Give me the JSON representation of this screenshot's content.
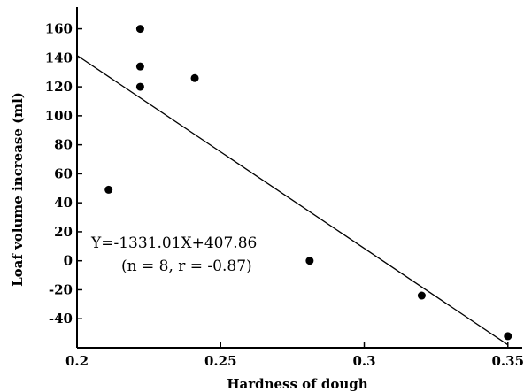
{
  "chart_data": {
    "type": "scatter",
    "title": "",
    "xlabel": "Hardness of dough",
    "ylabel": "Loaf volume increase (ml)",
    "xlim": [
      0.2,
      0.355
    ],
    "ylim": [
      -60,
      175
    ],
    "x_ticks": [
      0.2,
      0.25,
      0.3,
      0.35
    ],
    "x_tick_labels": [
      "0.2",
      "0.25",
      "0.3",
      "0.35"
    ],
    "y_ticks": [
      -40,
      -20,
      0,
      20,
      40,
      60,
      80,
      100,
      120,
      140,
      160
    ],
    "y_tick_labels": [
      "-40",
      "-20",
      "0",
      "20",
      "40",
      "60",
      "80",
      "100",
      "120",
      "140",
      "160"
    ],
    "grid": false,
    "series": [
      {
        "points": [
          {
            "x": 0.211,
            "y": 49
          },
          {
            "x": 0.222,
            "y": 160
          },
          {
            "x": 0.222,
            "y": 134
          },
          {
            "x": 0.222,
            "y": 120
          },
          {
            "x": 0.241,
            "y": 126
          },
          {
            "x": 0.281,
            "y": 0
          },
          {
            "x": 0.32,
            "y": -24
          },
          {
            "x": 0.35,
            "y": -52
          }
        ]
      }
    ],
    "regression_line": {
      "x": [
        0.2,
        0.35
      ],
      "y": [
        141.66,
        -58.0
      ]
    },
    "annotations": [
      "Y=-1331.01X+407.86",
      "(n = 8, r = -0.87)"
    ]
  }
}
